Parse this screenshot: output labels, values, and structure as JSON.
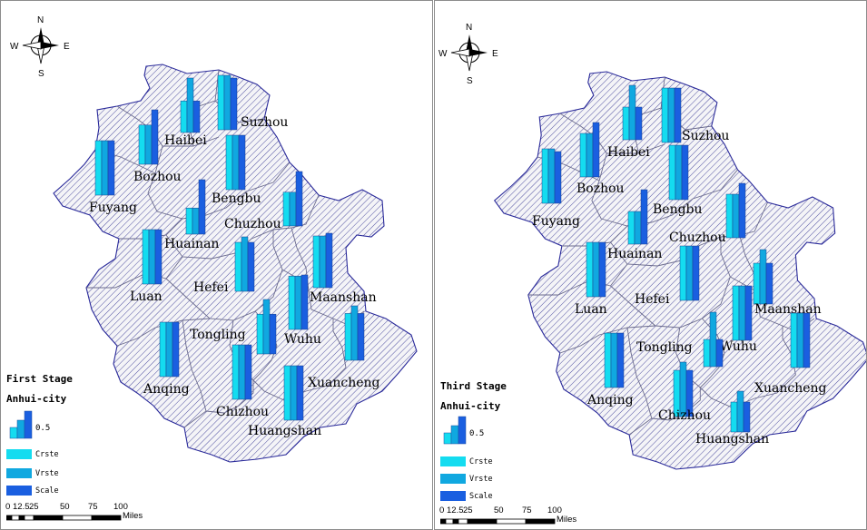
{
  "compass": {
    "n": "N",
    "s": "S",
    "e": "E",
    "w": "W"
  },
  "colors": {
    "crste": "#14dcf0",
    "vrste": "#10a8e0",
    "scale": "#1a5fe0",
    "boundary": "#2a2a9a",
    "hatch": "#3c3c96"
  },
  "legend": {
    "subtitle": "Anhui-city",
    "value": "0.5",
    "items": [
      {
        "label": "Crste",
        "color": "#14dcf0"
      },
      {
        "label": "Vrste",
        "color": "#10a8e0"
      },
      {
        "label": "Scale",
        "color": "#1a5fe0"
      }
    ]
  },
  "scalebar": {
    "ticks": [
      "0",
      "12.5",
      "25",
      "50",
      "75",
      "100"
    ],
    "unit": "Miles"
  },
  "maps": [
    {
      "stage": "First Stage",
      "cities": [
        {
          "name": "Suzhou",
          "crste": 1.0,
          "vrste": 1.0,
          "scale": 0.95
        },
        {
          "name": "Haibei",
          "crste": 0.58,
          "vrste": 1.0,
          "scale": 0.58
        },
        {
          "name": "Bozhou",
          "crste": 0.72,
          "vrste": 0.72,
          "scale": 1.0
        },
        {
          "name": "Fuyang",
          "crste": 1.0,
          "vrste": 1.0,
          "scale": 1.0
        },
        {
          "name": "Bengbu",
          "crste": 1.0,
          "vrste": 1.0,
          "scale": 1.0
        },
        {
          "name": "Chuzhou",
          "crste": 0.62,
          "vrste": 0.62,
          "scale": 1.0
        },
        {
          "name": "Huainan",
          "crste": 0.48,
          "vrste": 0.48,
          "scale": 1.0
        },
        {
          "name": "Luan",
          "crste": 1.0,
          "vrste": 1.0,
          "scale": 1.0
        },
        {
          "name": "Hefei",
          "crste": 0.9,
          "vrste": 1.0,
          "scale": 0.9
        },
        {
          "name": "Maanshan",
          "crste": 0.95,
          "vrste": 0.95,
          "scale": 1.0
        },
        {
          "name": "Wuhu",
          "crste": 0.98,
          "vrste": 0.98,
          "scale": 1.0
        },
        {
          "name": "Tongling",
          "crste": 0.73,
          "vrste": 1.0,
          "scale": 0.73
        },
        {
          "name": "Anqing",
          "crste": 1.0,
          "vrste": 1.0,
          "scale": 1.0
        },
        {
          "name": "Xuancheng",
          "crste": 0.86,
          "vrste": 1.0,
          "scale": 0.86
        },
        {
          "name": "Chizhou",
          "crste": 1.0,
          "vrste": 1.0,
          "scale": 1.0
        },
        {
          "name": "Huangshan",
          "crste": 1.0,
          "vrste": 1.0,
          "scale": 1.0
        }
      ]
    },
    {
      "stage": "Third Stage",
      "cities": [
        {
          "name": "Suzhou",
          "crste": 1.0,
          "vrste": 1.0,
          "scale": 1.0
        },
        {
          "name": "Haibei",
          "crste": 0.6,
          "vrste": 1.0,
          "scale": 0.6
        },
        {
          "name": "Bozhou",
          "crste": 0.8,
          "vrste": 0.8,
          "scale": 1.0
        },
        {
          "name": "Fuyang",
          "crste": 1.0,
          "vrste": 1.0,
          "scale": 0.95
        },
        {
          "name": "Bengbu",
          "crste": 1.0,
          "vrste": 1.0,
          "scale": 1.0
        },
        {
          "name": "Chuzhou",
          "crste": 0.8,
          "vrste": 0.8,
          "scale": 1.0
        },
        {
          "name": "Huainan",
          "crste": 0.6,
          "vrste": 0.6,
          "scale": 1.0
        },
        {
          "name": "Luan",
          "crste": 1.0,
          "vrste": 1.0,
          "scale": 1.0
        },
        {
          "name": "Hefei",
          "crste": 1.0,
          "vrste": 1.0,
          "scale": 1.0
        },
        {
          "name": "Maanshan",
          "crste": 0.75,
          "vrste": 1.0,
          "scale": 0.75
        },
        {
          "name": "Wuhu",
          "crste": 1.0,
          "vrste": 1.0,
          "scale": 1.0
        },
        {
          "name": "Tongling",
          "crste": 0.5,
          "vrste": 1.0,
          "scale": 0.5
        },
        {
          "name": "Anqing",
          "crste": 1.0,
          "vrste": 1.0,
          "scale": 1.0
        },
        {
          "name": "Xuancheng",
          "crste": 1.0,
          "vrste": 1.0,
          "scale": 1.0
        },
        {
          "name": "Chizhou",
          "crste": 0.85,
          "vrste": 1.0,
          "scale": 0.85
        },
        {
          "name": "Huangshan",
          "crste": 0.55,
          "vrste": 0.75,
          "scale": 0.55
        }
      ]
    }
  ]
}
